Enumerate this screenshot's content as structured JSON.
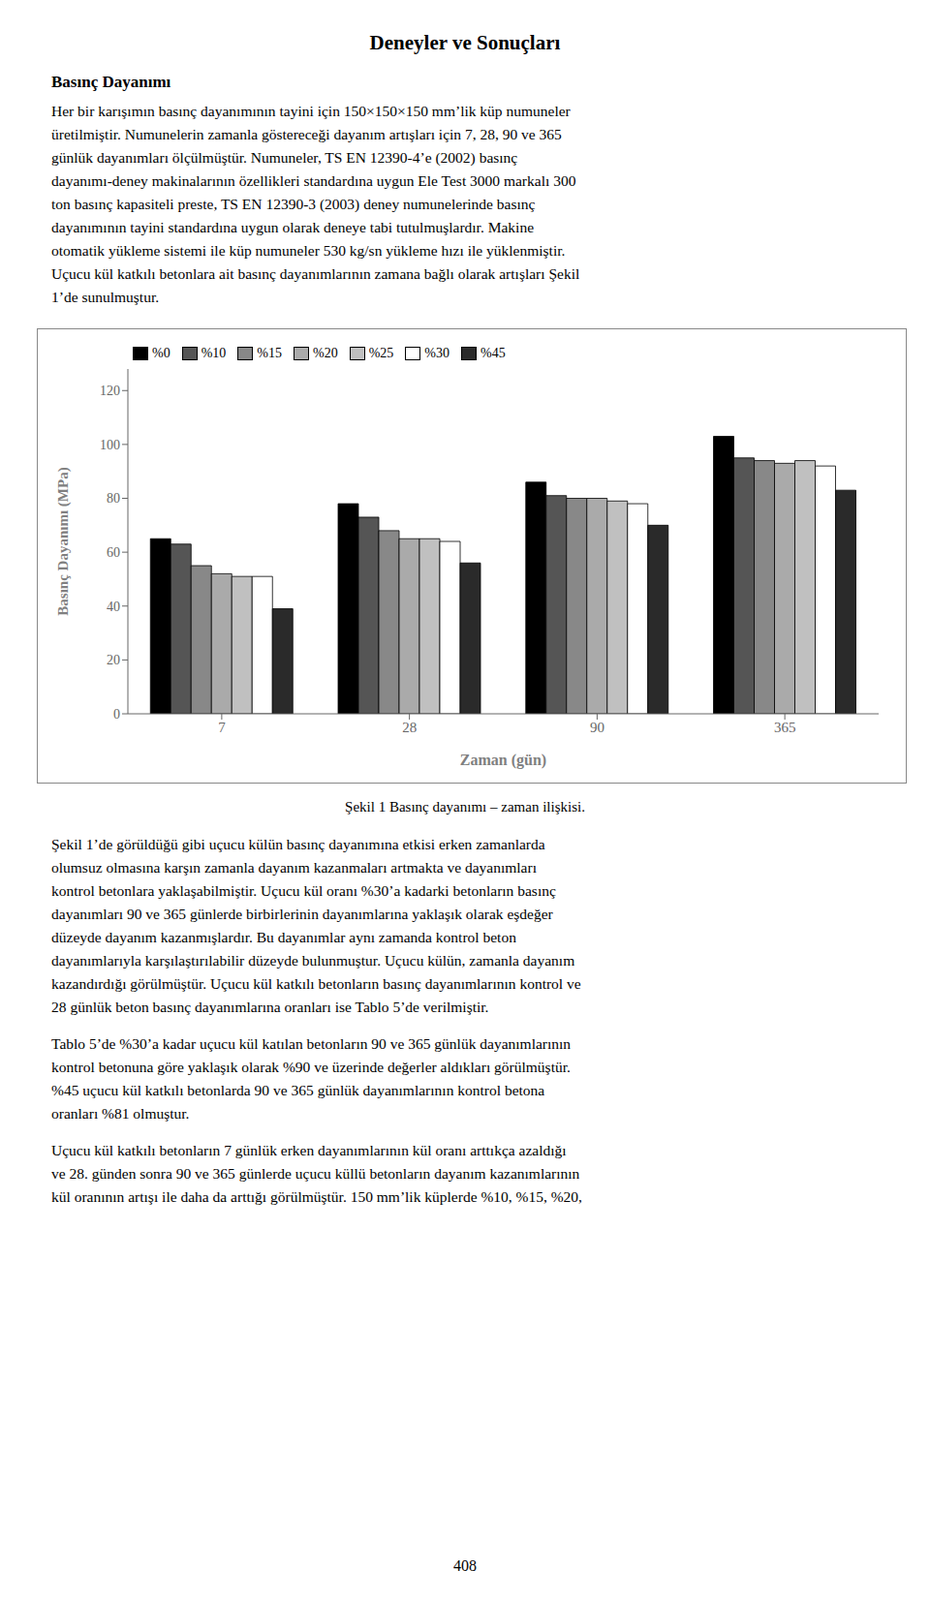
{
  "chart_data": {
    "type": "bar",
    "title": "Deneyler ve Sonuçları",
    "subtitle": "Basınç Dayanımı",
    "paragraphs_before": [
      [
        "Her bir karışımın basınç dayanımının tayini için 150×150×150 mm’lik küp numuneler",
        "üretilmiştir. Numunelerin zamanla göstereceği dayanım artışları için 7, 28, 90 ve 365",
        "günlük dayanımları ölçülmüştür. Numuneler, TS EN 12390-4’e (2002) basınç",
        "dayanımı-deney makinalarının özellikleri standardına uygun Ele Test 3000 markalı 300",
        "ton basınç kapasiteli preste, TS EN 12390-3 (2003) deney numunelerinde basınç",
        "dayanımının tayini standardına uygun olarak deneye tabi tutulmuşlardır. Makine",
        "otomatik yükleme sistemi ile küp numuneler 530 kg/sn yükleme hızı ile yüklenmiştir.",
        "Uçucu kül katkılı betonlara ait basınç dayanımlarının zamana bağlı olarak artışları Şekil",
        "1’de sunulmuştur."
      ]
    ],
    "caption": "Şekil 1 Basınç dayanımı – zaman ilişkisi.",
    "paragraphs_after": [
      [
        "Şekil 1’de görüldüğü gibi uçucu külün basınç dayanımına etkisi erken zamanlarda",
        "olumsuz olmasına karşın zamanla dayanım kazanmaları artmakta ve dayanımları",
        "kontrol betonlara yaklaşabilmiştir. Uçucu kül oranı %30’a kadarki betonların basınç",
        "dayanımları 90 ve 365 günlerde birbirlerinin dayanımlarına yaklaşık olarak eşdeğer",
        "düzeyde dayanım kazanmışlardır. Bu dayanımlar aynı zamanda kontrol beton",
        "dayanımlarıyla karşılaştırılabilir düzeyde bulunmuştur. Uçucu külün, zamanla dayanım",
        "kazandırdığı görülmüştür. Uçucu kül katkılı betonların basınç dayanımlarının kontrol ve",
        "28 günlük beton basınç dayanımlarına oranları ise Tablo 5’de verilmiştir."
      ],
      [
        "Tablo 5’de %30’a kadar uçucu kül katılan betonların 90 ve 365 günlük dayanımlarının",
        "kontrol betonuna göre yaklaşık olarak %90 ve üzerinde değerler aldıkları görülmüştür.",
        "%45 uçucu kül katkılı betonlarda 90 ve 365 günlük dayanımlarının kontrol betona",
        "oranları %81 olmuştur."
      ],
      [
        "Uçucu kül katkılı betonların 7 günlük erken dayanımlarının kül oranı arttıkça azaldığı",
        "ve 28. günden sonra 90 ve 365 günlerde uçucu küllü betonların dayanım kazanımlarının",
        "kül oranının artışı ile daha da arttığı görülmüştür. 150 mm’lik küplerde %10, %15, %20,"
      ]
    ],
    "page_number": "408",
    "x_label": "Zaman (gün)",
    "y_label": "Basınç Dayanımı (MPa)",
    "categories": [
      "7",
      "28",
      "90",
      "365"
    ],
    "series": [
      {
        "name": "%0",
        "color": "#000000",
        "values": [
          65,
          78,
          86,
          103
        ]
      },
      {
        "name": "%10",
        "color": "#555555",
        "values": [
          63,
          73,
          81,
          95
        ]
      },
      {
        "name": "%15",
        "color": "#888888",
        "values": [
          55,
          68,
          80,
          94
        ]
      },
      {
        "name": "%20",
        "color": "#aaaaaa",
        "values": [
          52,
          65,
          80,
          93
        ]
      },
      {
        "name": "%25",
        "color": "#c0c0c0",
        "values": [
          51,
          65,
          79,
          94
        ]
      },
      {
        "name": "%30",
        "color": "#ffffff",
        "values": [
          51,
          64,
          78,
          92
        ]
      },
      {
        "name": "%45",
        "color": "#2a2a2a",
        "values": [
          39,
          56,
          70,
          83
        ]
      }
    ],
    "ylim": [
      0,
      128
    ],
    "yticks": [
      0,
      20,
      40,
      60,
      80,
      100,
      120
    ],
    "grid": false,
    "legend": "upper left"
  }
}
